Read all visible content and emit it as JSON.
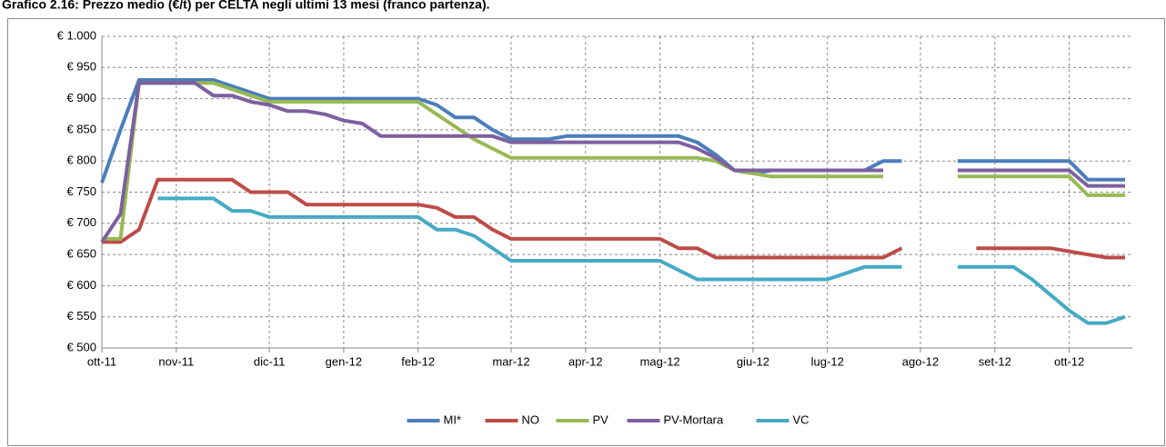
{
  "chart_data": {
    "type": "line",
    "title": "Grafico 2.16: Prezzo medio (€/t) per CELTA negli ultimi 13 mesi (franco partenza).",
    "categories": [
      "ott-11",
      null,
      null,
      null,
      "nov-11",
      null,
      null,
      null,
      null,
      "dic-11",
      null,
      null,
      null,
      "gen-12",
      null,
      null,
      null,
      "feb-12",
      null,
      null,
      null,
      null,
      "mar-12",
      null,
      null,
      null,
      "apr-12",
      null,
      null,
      null,
      "mag-12",
      null,
      null,
      null,
      null,
      "giu-12",
      null,
      null,
      null,
      "lug-12",
      null,
      null,
      null,
      null,
      "ago-12",
      null,
      null,
      null,
      "set-12",
      null,
      null,
      null,
      "ott-12",
      null,
      null,
      null
    ],
    "series": [
      {
        "name": "MI*",
        "color": "#4a7ebb",
        "values": [
          765,
          850,
          930,
          930,
          930,
          930,
          930,
          920,
          910,
          900,
          900,
          900,
          900,
          900,
          900,
          900,
          900,
          900,
          890,
          870,
          870,
          850,
          835,
          835,
          835,
          840,
          840,
          840,
          840,
          840,
          840,
          840,
          830,
          810,
          785,
          780,
          785,
          785,
          785,
          785,
          785,
          785,
          800,
          800,
          null,
          null,
          800,
          800,
          800,
          800,
          800,
          800,
          800,
          770,
          770,
          770
        ]
      },
      {
        "name": "NO",
        "color": "#be4b48",
        "values": [
          670,
          670,
          690,
          770,
          770,
          770,
          770,
          770,
          750,
          750,
          750,
          730,
          730,
          730,
          730,
          730,
          730,
          730,
          725,
          710,
          710,
          690,
          675,
          675,
          675,
          675,
          675,
          675,
          675,
          675,
          675,
          660,
          660,
          645,
          645,
          645,
          645,
          645,
          645,
          645,
          645,
          645,
          645,
          660,
          null,
          null,
          null,
          660,
          660,
          660,
          660,
          660,
          655,
          650,
          645,
          645
        ]
      },
      {
        "name": "PV",
        "color": "#98b954",
        "values": [
          675,
          675,
          925,
          925,
          925,
          925,
          925,
          915,
          905,
          895,
          895,
          895,
          895,
          895,
          895,
          895,
          895,
          895,
          875,
          855,
          835,
          820,
          805,
          805,
          805,
          805,
          805,
          805,
          805,
          805,
          805,
          805,
          805,
          800,
          785,
          780,
          775,
          775,
          775,
          775,
          775,
          775,
          775,
          null,
          null,
          null,
          775,
          775,
          775,
          775,
          775,
          775,
          775,
          745,
          745,
          745
        ]
      },
      {
        "name": "PV-Mortara",
        "color": "#7d60a0",
        "values": [
          670,
          715,
          925,
          925,
          925,
          925,
          905,
          905,
          895,
          890,
          880,
          880,
          875,
          865,
          860,
          840,
          840,
          840,
          840,
          840,
          840,
          840,
          830,
          830,
          830,
          830,
          830,
          830,
          830,
          830,
          830,
          830,
          820,
          805,
          785,
          785,
          785,
          785,
          785,
          785,
          785,
          785,
          785,
          null,
          null,
          null,
          785,
          785,
          785,
          785,
          785,
          785,
          785,
          760,
          760,
          760
        ]
      },
      {
        "name": "VC",
        "color": "#46aac5",
        "values": [
          null,
          null,
          null,
          740,
          740,
          740,
          740,
          720,
          720,
          710,
          710,
          710,
          710,
          710,
          710,
          710,
          710,
          710,
          690,
          690,
          680,
          660,
          640,
          640,
          640,
          640,
          640,
          640,
          640,
          640,
          640,
          625,
          610,
          610,
          610,
          610,
          610,
          610,
          610,
          610,
          620,
          630,
          630,
          630,
          null,
          null,
          630,
          630,
          630,
          630,
          610,
          585,
          560,
          540,
          540,
          550
        ]
      }
    ],
    "ylim": [
      500,
      1000
    ],
    "yticks": [
      {
        "value": 500,
        "label": "€ 500"
      },
      {
        "value": 550,
        "label": "€ 550"
      },
      {
        "value": 600,
        "label": "€ 600"
      },
      {
        "value": 650,
        "label": "€ 650"
      },
      {
        "value": 700,
        "label": "€ 700"
      },
      {
        "value": 750,
        "label": "€ 750"
      },
      {
        "value": 800,
        "label": "€ 800"
      },
      {
        "value": 850,
        "label": "€ 850"
      },
      {
        "value": 900,
        "label": "€ 900"
      },
      {
        "value": 950,
        "label": "€ 950"
      },
      {
        "value": 1000,
        "label": "€ 1.000"
      }
    ],
    "grid": true,
    "legend": "bottom"
  }
}
